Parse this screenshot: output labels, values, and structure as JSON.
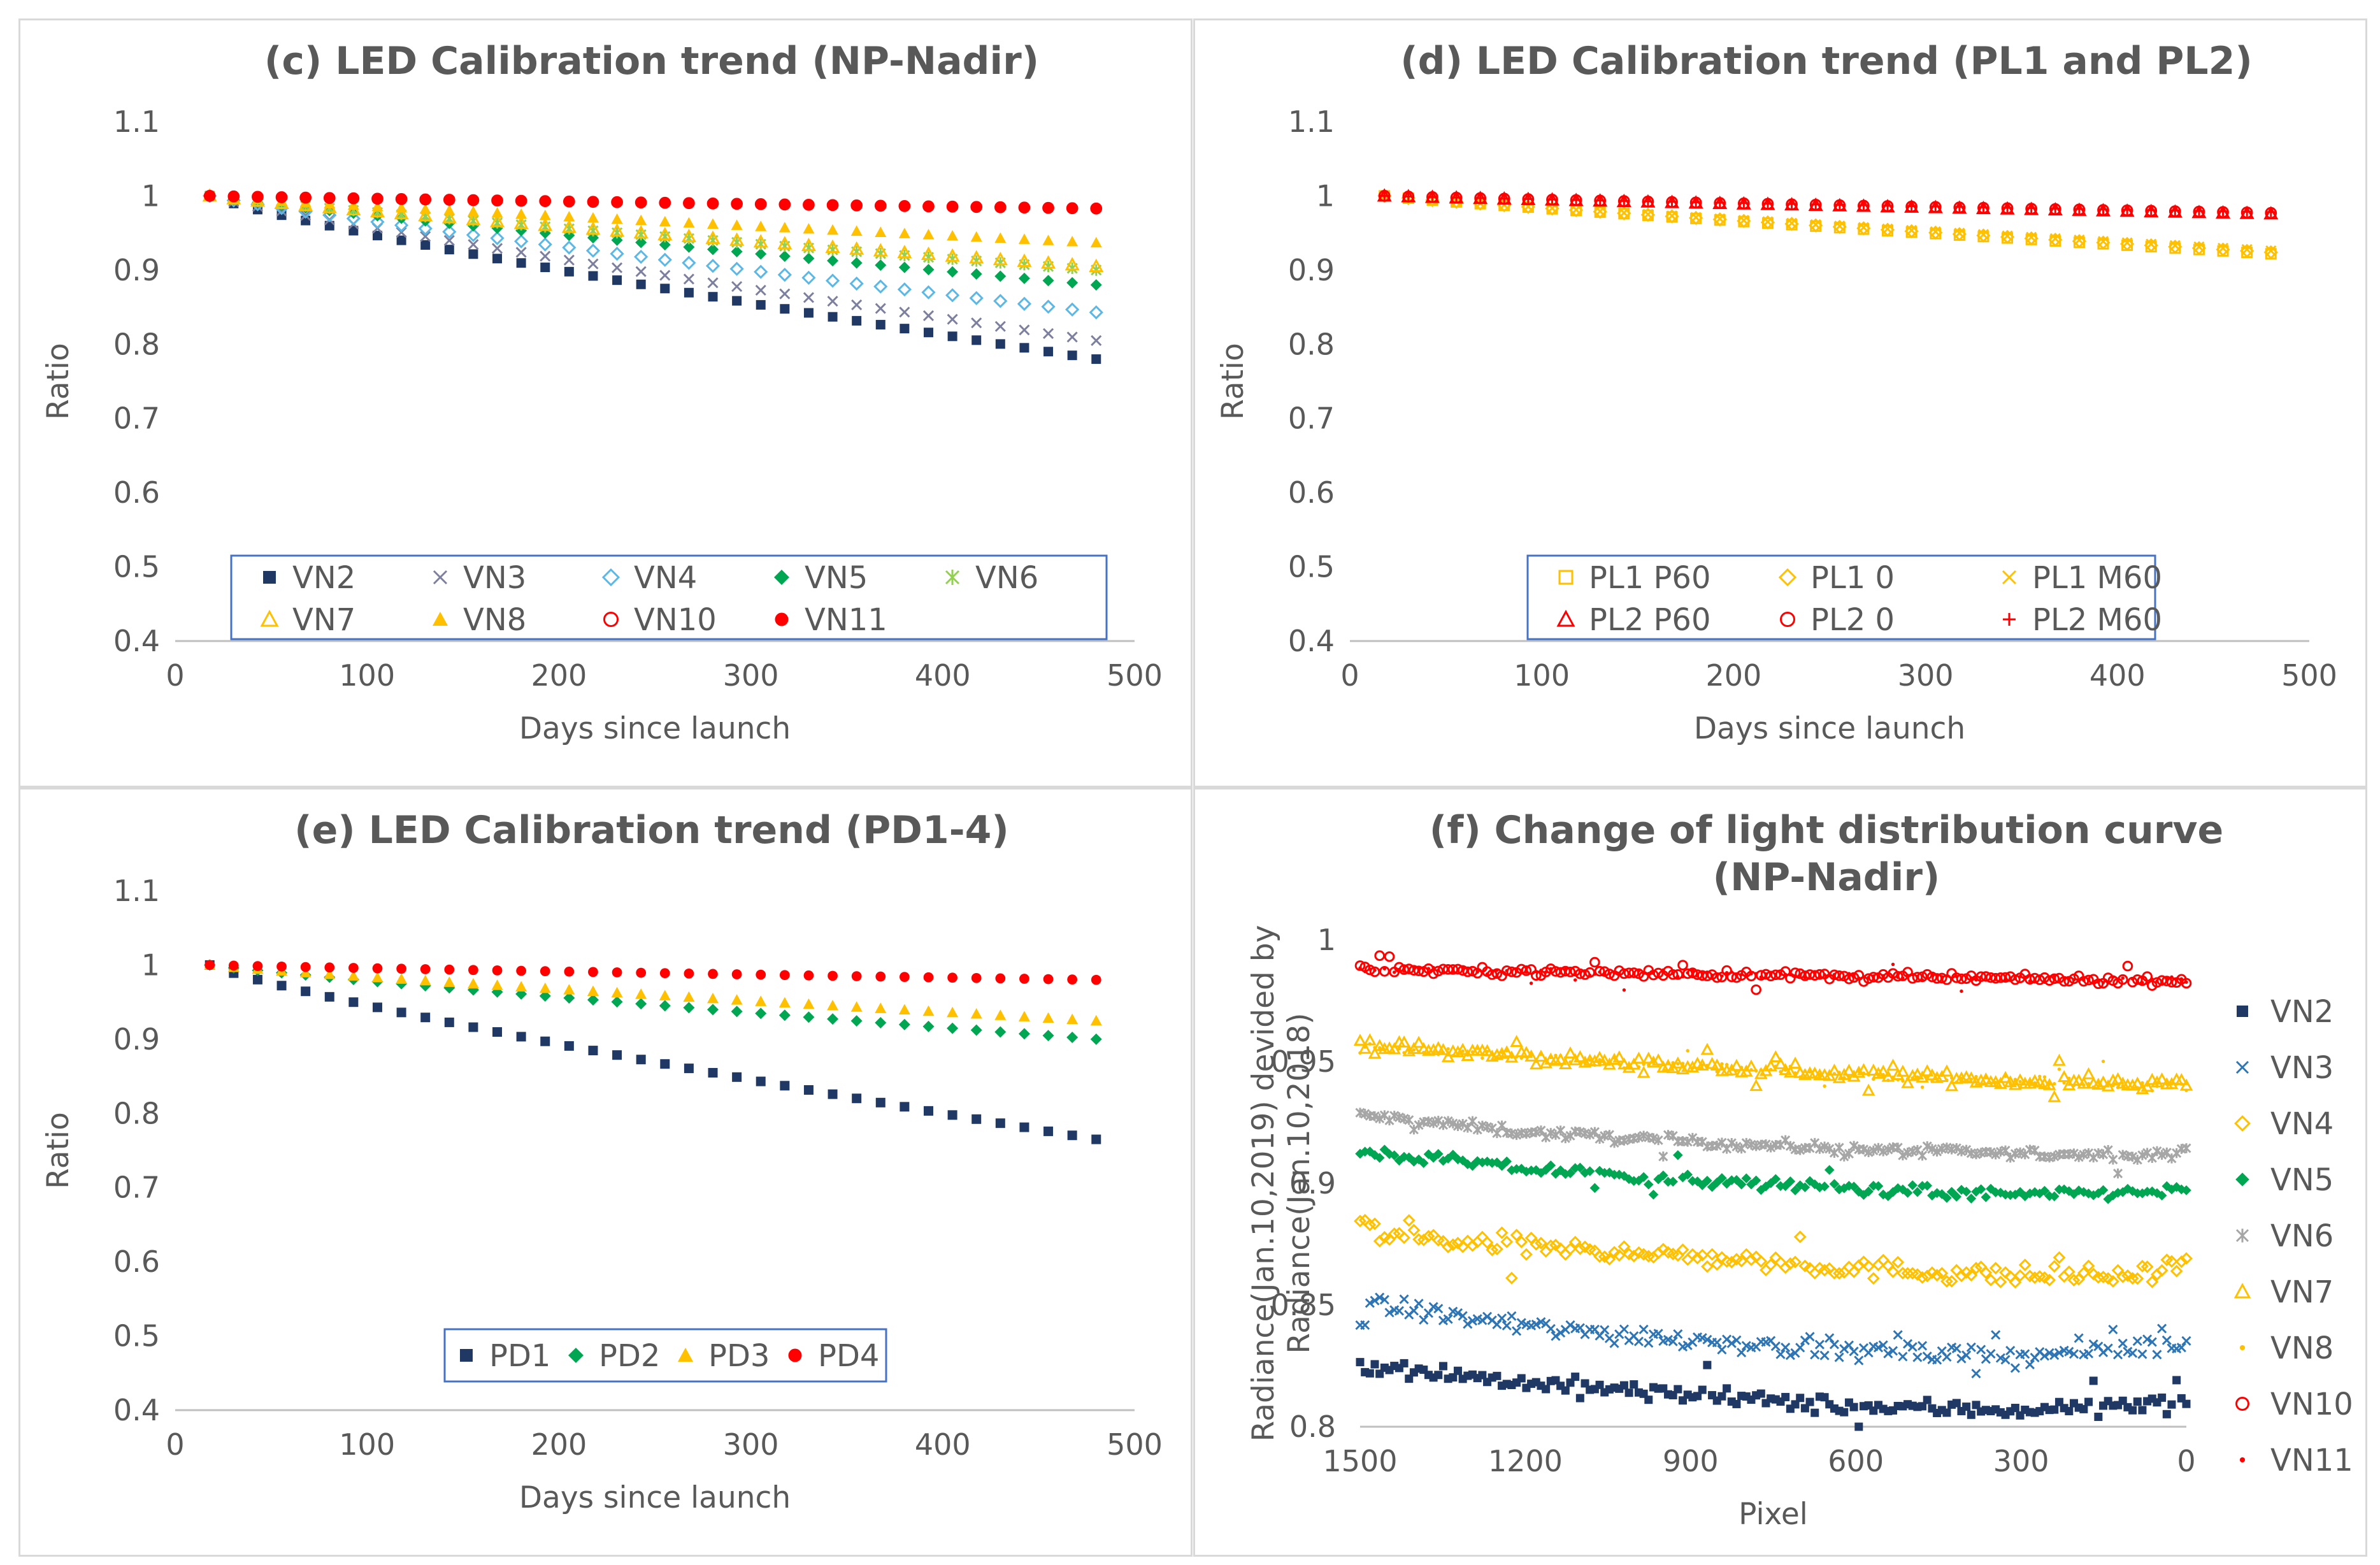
{
  "chart_data": [
    {
      "id": "c",
      "type": "scatter",
      "title": "(c) LED Calibration trend (NP-Nadir)",
      "xlabel": "Days since launch",
      "ylabel": "Ratio",
      "xlim": [
        0,
        500
      ],
      "ylim": [
        0.4,
        1.1
      ],
      "xticks": [
        0,
        100,
        200,
        300,
        400,
        500
      ],
      "yticks": [
        0.4,
        0.5,
        0.6,
        0.7,
        0.8,
        0.9,
        1,
        1.1
      ],
      "xtick_labels": [
        "0",
        "100",
        "200",
        "300",
        "400",
        "500"
      ],
      "ytick_labels": [
        "0.4",
        "0.5",
        "0.6",
        "0.7",
        "0.8",
        "0.9",
        "1",
        "1.1"
      ],
      "legend": {
        "position": "bottom-center",
        "columns": 5
      },
      "x_range": [
        18,
        480
      ],
      "series": [
        {
          "name": "VN2",
          "marker": "square-filled",
          "color": "#1f3864",
          "start": 1.0,
          "end": 0.78,
          "shape": 0.85
        },
        {
          "name": "VN3",
          "marker": "x",
          "color": "#7d7f9f",
          "start": 1.0,
          "end": 0.805,
          "shape": 0.9
        },
        {
          "name": "VN4",
          "marker": "diamond-open",
          "color": "#5bb8e6",
          "start": 1.0,
          "end": 0.843,
          "shape": 0.9
        },
        {
          "name": "VN5",
          "marker": "diamond-filled",
          "color": "#00a651",
          "start": 1.0,
          "end": 0.88,
          "shape": 0.9
        },
        {
          "name": "VN6",
          "marker": "asterisk",
          "color": "#92d050",
          "start": 1.0,
          "end": 0.9,
          "shape": 0.9
        },
        {
          "name": "VN7",
          "marker": "triangle-open",
          "color": "#ffc000",
          "start": 1.0,
          "end": 0.905,
          "shape": 0.9
        },
        {
          "name": "VN8",
          "marker": "triangle-filled",
          "color": "#ffc000",
          "start": 1.0,
          "end": 0.937,
          "shape": 0.9
        },
        {
          "name": "VN10",
          "marker": "circle-open",
          "color": "#ff0000",
          "start": 1.0,
          "end": 0.983,
          "shape": 0.9
        },
        {
          "name": "VN11",
          "marker": "circle-filled",
          "color": "#ff0000",
          "start": 1.0,
          "end": 0.984,
          "shape": 0.9
        }
      ]
    },
    {
      "id": "d",
      "type": "scatter",
      "title": "(d) LED Calibration trend (PL1 and PL2)",
      "xlabel": "Days since launch",
      "ylabel": "Ratio",
      "xlim": [
        0,
        500
      ],
      "ylim": [
        0.4,
        1.1
      ],
      "xticks": [
        0,
        100,
        200,
        300,
        400,
        500
      ],
      "yticks": [
        0.4,
        0.5,
        0.6,
        0.7,
        0.8,
        0.9,
        1,
        1.1
      ],
      "xtick_labels": [
        "0",
        "100",
        "200",
        "300",
        "400",
        "500"
      ],
      "ytick_labels": [
        "0.4",
        "0.5",
        "0.6",
        "0.7",
        "0.8",
        "0.9",
        "1",
        "1.1"
      ],
      "legend": {
        "position": "bottom-center",
        "columns": 3
      },
      "x_range": [
        18,
        480
      ],
      "series": [
        {
          "name": "PL1 P60",
          "marker": "square-open",
          "color": "#ffc000",
          "start": 1.0,
          "end": 0.922,
          "shape": 0.9
        },
        {
          "name": "PL1 0",
          "marker": "diamond-open",
          "color": "#ffc000",
          "start": 1.0,
          "end": 0.924,
          "shape": 0.9
        },
        {
          "name": "PL1 M60",
          "marker": "x",
          "color": "#ffc000",
          "start": 1.0,
          "end": 0.926,
          "shape": 0.9
        },
        {
          "name": "PL2 P60",
          "marker": "triangle-open",
          "color": "#ff0000",
          "start": 1.0,
          "end": 0.976,
          "shape": 0.9
        },
        {
          "name": "PL2 0",
          "marker": "circle-open",
          "color": "#ff0000",
          "start": 1.0,
          "end": 0.977,
          "shape": 0.9
        },
        {
          "name": "PL2 M60",
          "marker": "plus",
          "color": "#ff0000",
          "start": 1.0,
          "end": 0.978,
          "shape": 0.9
        }
      ]
    },
    {
      "id": "e",
      "type": "scatter",
      "title": "(e) LED Calibration trend (PD1-4)",
      "xlabel": "Days since launch",
      "ylabel": "Ratio",
      "xlim": [
        0,
        500
      ],
      "ylim": [
        0.4,
        1.1
      ],
      "xticks": [
        0,
        100,
        200,
        300,
        400,
        500
      ],
      "yticks": [
        0.4,
        0.5,
        0.6,
        0.7,
        0.8,
        0.9,
        1,
        1.1
      ],
      "xtick_labels": [
        "0",
        "100",
        "200",
        "300",
        "400",
        "500"
      ],
      "ytick_labels": [
        "0.4",
        "0.5",
        "0.6",
        "0.7",
        "0.8",
        "0.9",
        "1",
        "1.1"
      ],
      "legend": {
        "position": "bottom-center",
        "columns": 4
      },
      "x_range": [
        18,
        480
      ],
      "series": [
        {
          "name": "PD1",
          "marker": "square-filled",
          "color": "#1f3864",
          "start": 1.0,
          "end": 0.765,
          "shape": 0.85
        },
        {
          "name": "PD2",
          "marker": "diamond-filled",
          "color": "#00a651",
          "start": 1.0,
          "end": 0.9,
          "shape": 0.9
        },
        {
          "name": "PD3",
          "marker": "triangle-filled",
          "color": "#ffc000",
          "start": 1.0,
          "end": 0.925,
          "shape": 0.9
        },
        {
          "name": "PD4",
          "marker": "circle-filled",
          "color": "#ff0000",
          "start": 1.0,
          "end": 0.98,
          "shape": 0.9
        }
      ]
    },
    {
      "id": "f",
      "type": "scatter",
      "title": [
        "(f) Change of light distribution curve",
        "(NP-Nadir)"
      ],
      "xlabel": "Pixel",
      "ylabel": [
        "Radiance(Jan.10,2019) devided by",
        "Radiance(Jan.10,2018)"
      ],
      "xlim": [
        1500,
        0
      ],
      "ylim": [
        0.8,
        1.0
      ],
      "xticks": [
        1500,
        1200,
        900,
        600,
        300,
        0
      ],
      "yticks": [
        0.8,
        0.85,
        0.9,
        0.95,
        1
      ],
      "xtick_labels": [
        "1500",
        "1200",
        "900",
        "600",
        "300",
        "0"
      ],
      "ytick_labels": [
        "0.8",
        "0.85",
        "0.9",
        "0.95",
        "1"
      ],
      "legend": {
        "position": "right",
        "columns": 1
      },
      "series": [
        {
          "name": "VN2",
          "marker": "square-filled",
          "color": "#1f3864",
          "curve": [
            [
              1500,
              0.826
            ],
            [
              1200,
              0.818
            ],
            [
              900,
              0.813
            ],
            [
              600,
              0.808
            ],
            [
              300,
              0.807
            ],
            [
              0,
              0.81
            ]
          ],
          "noise": 0.0035
        },
        {
          "name": "VN3",
          "marker": "x",
          "color": "#2e75b6",
          "curve": [
            [
              1500,
              0.851
            ],
            [
              1200,
              0.841
            ],
            [
              900,
              0.836
            ],
            [
              600,
              0.831
            ],
            [
              300,
              0.829
            ],
            [
              0,
              0.834
            ]
          ],
          "noise": 0.004
        },
        {
          "name": "VN4",
          "marker": "diamond-open",
          "color": "#ffc000",
          "curve": [
            [
              1500,
              0.884
            ],
            [
              1450,
              0.878
            ],
            [
              1200,
              0.874
            ],
            [
              900,
              0.87
            ],
            [
              600,
              0.865
            ],
            [
              300,
              0.862
            ],
            [
              60,
              0.862
            ],
            [
              0,
              0.868
            ]
          ],
          "noise": 0.004
        },
        {
          "name": "VN5",
          "marker": "diamond-filled",
          "color": "#00a651",
          "curve": [
            [
              1500,
              0.913
            ],
            [
              1200,
              0.906
            ],
            [
              900,
              0.901
            ],
            [
              600,
              0.898
            ],
            [
              300,
              0.895
            ],
            [
              0,
              0.897
            ]
          ],
          "noise": 0.0025
        },
        {
          "name": "VN6",
          "marker": "asterisk",
          "color": "#a6a6a6",
          "curve": [
            [
              1500,
              0.928
            ],
            [
              1200,
              0.921
            ],
            [
              900,
              0.917
            ],
            [
              600,
              0.914
            ],
            [
              300,
              0.912
            ],
            [
              0,
              0.912
            ]
          ],
          "noise": 0.002
        },
        {
          "name": "VN7",
          "marker": "triangle-open",
          "color": "#ffc000",
          "curve": [
            [
              1500,
              0.957
            ],
            [
              1200,
              0.952
            ],
            [
              900,
              0.948
            ],
            [
              600,
              0.945
            ],
            [
              300,
              0.942
            ],
            [
              0,
              0.941
            ]
          ],
          "noise": 0.0025
        },
        {
          "name": "VN8",
          "marker": "dot",
          "color": "#ffc000",
          "curve": [
            [
              1500,
              0.956
            ],
            [
              1200,
              0.952
            ],
            [
              900,
              0.948
            ],
            [
              600,
              0.945
            ],
            [
              300,
              0.942
            ],
            [
              0,
              0.94
            ]
          ],
          "noise": 0.002
        },
        {
          "name": "VN10",
          "marker": "circle-open",
          "color": "#ff0000",
          "curve": [
            [
              1500,
              0.988
            ],
            [
              1200,
              0.987
            ],
            [
              900,
              0.986
            ],
            [
              600,
              0.985
            ],
            [
              300,
              0.984
            ],
            [
              0,
              0.983
            ]
          ],
          "noise": 0.0015
        },
        {
          "name": "VN11",
          "marker": "dot",
          "color": "#ff0000",
          "curve": [
            [
              1500,
              0.988
            ],
            [
              1200,
              0.987
            ],
            [
              900,
              0.986
            ],
            [
              600,
              0.985
            ],
            [
              300,
              0.984
            ],
            [
              0,
              0.983
            ]
          ],
          "noise": 0.0015
        }
      ]
    }
  ]
}
